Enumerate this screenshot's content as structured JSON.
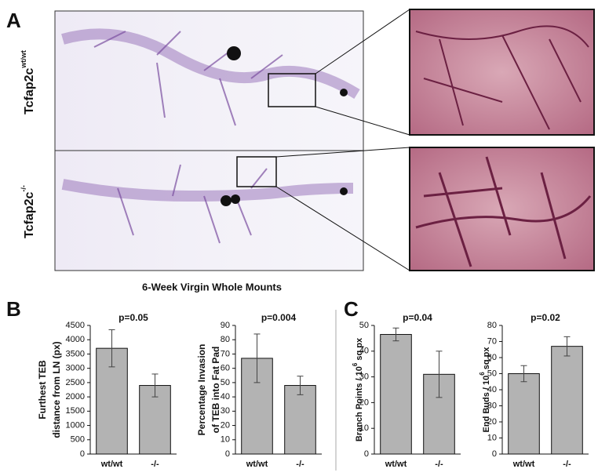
{
  "panels": {
    "a": "A",
    "b": "B",
    "c": "C"
  },
  "genotype_rows": [
    {
      "gene": "Tcfap2c",
      "genotype": "wt/wt"
    },
    {
      "gene": "Tcfap2c",
      "genotype": "-/-"
    }
  ],
  "caption": "6-Week Virgin Whole Mounts",
  "chart_data": [
    {
      "type": "bar",
      "annotation": "p=0.05",
      "ylabel": [
        "Furthest TEB",
        "distance from LN (px)"
      ],
      "categories": [
        "wt/wt",
        "-/-"
      ],
      "values": [
        3700,
        2400
      ],
      "errors": [
        650,
        400
      ],
      "color": "#b3b3b3",
      "ylim": [
        0,
        4500
      ],
      "yticks": [
        0,
        500,
        1000,
        1500,
        2000,
        2500,
        3000,
        3500,
        4000,
        4500
      ]
    },
    {
      "type": "bar",
      "annotation": "p=0.004",
      "ylabel": [
        "Percentage Invasion",
        "of TEB into Fat Pad"
      ],
      "categories": [
        "wt/wt",
        "-/-"
      ],
      "values": [
        67,
        48
      ],
      "errors": [
        17,
        6.5
      ],
      "color": "#b3b3b3",
      "ylim": [
        0,
        90
      ],
      "yticks": [
        0,
        10,
        20,
        30,
        40,
        50,
        60,
        70,
        80,
        90
      ]
    },
    {
      "type": "bar",
      "annotation": "p=0.04",
      "ylabel": [
        "Branch Points / 10",
        "6",
        "sq px"
      ],
      "categories": [
        "wt/wt",
        "-/-"
      ],
      "values": [
        46.5,
        31
      ],
      "errors": [
        2.5,
        9
      ],
      "color": "#b3b3b3",
      "ylim": [
        0,
        50
      ],
      "yticks": [
        0,
        10,
        20,
        30,
        40,
        50
      ]
    },
    {
      "type": "bar",
      "annotation": "p=0.02",
      "ylabel": [
        "End Buds / 10",
        "6",
        "sq px"
      ],
      "categories": [
        "wt/wt",
        "-/-"
      ],
      "values": [
        50,
        67
      ],
      "errors": [
        5,
        6
      ],
      "color": "#b3b3b3",
      "ylim": [
        0,
        80
      ],
      "yticks": [
        0,
        10,
        20,
        30,
        40,
        50,
        60,
        70,
        80
      ]
    }
  ]
}
